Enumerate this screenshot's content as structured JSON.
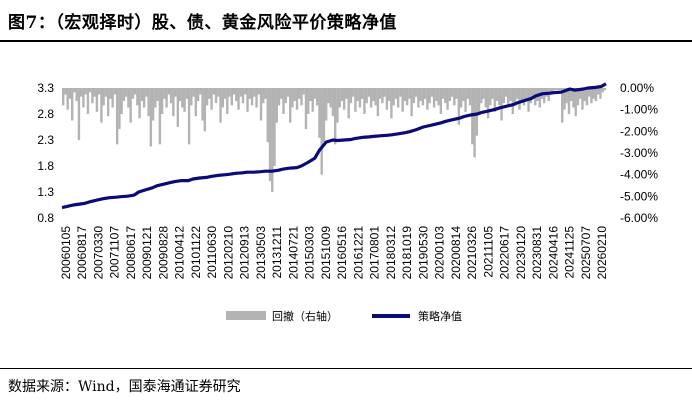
{
  "title": "图7：（宏观择时）股、债、黄金风险平价策略净值",
  "source": "数据来源：Wind，国泰海通证券研究",
  "colors": {
    "drawdown": "#b3b3b3",
    "nav": "#0a0a7a"
  },
  "chart_data": {
    "type": "bar+line",
    "left_axis": {
      "ticks": [
        "3.3",
        "2.8",
        "2.3",
        "1.8",
        "1.3",
        "0.8"
      ],
      "min": 0.8,
      "max": 3.3
    },
    "right_axis": {
      "ticks": [
        "0.00%",
        "-1.00%",
        "-2.00%",
        "-3.00%",
        "-4.00%",
        "-5.00%",
        "-6.00%"
      ],
      "min": -6.0,
      "max": 0.0
    },
    "x_ticks": [
      "20060105",
      "20060817",
      "20070330",
      "20071107",
      "20080617",
      "20090121",
      "20090828",
      "20100412",
      "20101122",
      "20110630",
      "20120210",
      "20120913",
      "20130503",
      "20131211",
      "20140721",
      "20150303",
      "20151009",
      "20160516",
      "20161221",
      "20170801",
      "20180312",
      "20181019",
      "20190530",
      "20200103",
      "20200814",
      "20210326",
      "20211105",
      "20220617",
      "20230120",
      "20230831",
      "20240416",
      "20241125",
      "20250707",
      "20260210"
    ],
    "series": [
      {
        "name": "回撤（右轴）",
        "type": "bar",
        "axis": "right",
        "y_percent": [
          -0.8,
          -0.3,
          -1.0,
          -0.5,
          -1.5,
          -0.2,
          -0.6,
          -2.4,
          -0.4,
          -0.9,
          -0.3,
          -1.2,
          -0.2,
          -0.7,
          -0.4,
          -1.1,
          -0.3,
          -1.6,
          -0.8,
          -0.4,
          -1.3,
          -0.5,
          -0.9,
          -0.3,
          -2.6,
          -1.9,
          -1.2,
          -0.6,
          -0.4,
          -0.9,
          -1.6,
          -0.5,
          -0.3,
          -0.8,
          -1.4,
          -0.6,
          -0.9,
          -0.4,
          -1.3,
          -2.7,
          -1.5,
          -0.9,
          -0.6,
          -2.6,
          -1.2,
          -0.5,
          -0.9,
          -0.3,
          -0.7,
          -1.3,
          -0.4,
          -1.8,
          -0.6,
          -0.9,
          -1.1,
          -0.5,
          -2.6,
          -0.8,
          -0.4,
          -1.3,
          -0.6,
          -0.3,
          -1.5,
          -2.0,
          -0.8,
          -0.5,
          -1.0,
          -0.3,
          -0.7,
          -0.4,
          -1.6,
          -0.9,
          -0.5,
          -1.2,
          -0.4,
          -0.8,
          -0.3,
          -0.6,
          -1.0,
          -0.4,
          -0.7,
          -0.3,
          -1.1,
          -0.5,
          -0.8,
          -0.4,
          -0.9,
          -0.3,
          -1.5,
          -0.7,
          -0.5,
          -2.5,
          -4.3,
          -4.8,
          -3.6,
          -1.6,
          -0.8,
          -0.5,
          -1.2,
          -0.7,
          -0.4,
          -1.6,
          -0.9,
          -0.6,
          -1.0,
          -0.5,
          -0.8,
          -0.3,
          -1.9,
          -1.2,
          -0.6,
          -1.1,
          -0.5,
          -0.8,
          -2.3,
          -4.0,
          -2.5,
          -1.5,
          -0.7,
          -0.9,
          -1.3,
          -2.6,
          -1.6,
          -0.9,
          -0.6,
          -1.0,
          -0.5,
          -1.4,
          -0.7,
          -0.4,
          -1.1,
          -0.6,
          -0.9,
          -0.5,
          -1.2,
          -0.7,
          -0.4,
          -0.9,
          -0.6,
          -0.8,
          -1.3,
          -0.5,
          -0.7,
          -0.4,
          -1.0,
          -0.6,
          -1.4,
          -0.8,
          -0.5,
          -0.9,
          -0.4,
          -1.1,
          -0.6,
          -0.8,
          -0.5,
          -1.3,
          -0.7,
          -0.4,
          -0.9,
          -0.6,
          -0.8,
          -0.5,
          -1.0,
          -0.7,
          -0.4,
          -0.9,
          -0.6,
          -0.8,
          -1.2,
          -0.5,
          -0.7,
          -1.0,
          -0.6,
          -0.4,
          -0.8,
          -0.5,
          -1.7,
          -0.9,
          -0.6,
          -1.1,
          -0.5,
          -0.8,
          -2.6,
          -3.2,
          -2.2,
          -1.2,
          -0.7,
          -0.5,
          -0.9,
          -1.4,
          -0.8,
          -0.5,
          -1.1,
          -0.6,
          -0.8,
          -1.5,
          -0.7,
          -0.4,
          -0.9,
          -0.6,
          -1.2,
          -0.7,
          -0.5,
          -1.0,
          -0.6,
          -0.8,
          -0.5,
          -1.1,
          -0.7,
          -0.4,
          -0.8,
          -0.6,
          -0.9,
          -0.5,
          -0.7,
          -0.4,
          -0.6,
          -0.3,
          -0.2,
          -0.1,
          -0.1,
          -0.1,
          -1.6,
          -1.0,
          -0.7,
          -1.2,
          -0.6,
          -0.9,
          -1.3,
          -0.8,
          -0.5,
          -1.0,
          -0.6,
          -0.8,
          -0.4,
          -0.7,
          -0.5,
          -0.6,
          -0.3,
          -0.5,
          -0.2,
          -0.1
        ]
      },
      {
        "name": "策略净值",
        "type": "line",
        "axis": "left",
        "x_index": [
          0,
          2,
          5,
          8,
          10,
          13,
          16,
          18,
          21,
          24,
          26,
          29,
          32,
          34,
          37,
          40,
          42,
          45,
          48,
          50,
          53,
          56,
          58,
          61,
          64,
          66,
          69,
          72,
          74,
          77,
          80,
          82,
          85,
          88,
          90,
          93,
          96,
          98,
          101,
          104,
          106,
          109,
          112,
          114,
          117,
          120,
          122,
          125,
          128,
          130,
          133,
          136,
          138,
          141,
          144,
          146,
          149,
          152,
          154,
          157,
          160,
          162,
          165,
          168,
          170,
          173,
          176,
          178,
          181,
          184,
          186,
          189,
          192,
          194,
          197,
          200,
          202,
          205,
          208,
          210,
          213,
          216,
          218,
          221,
          223,
          225,
          227,
          229,
          231,
          233,
          236,
          239,
          241
        ],
        "y": [
          1.0,
          1.02,
          1.05,
          1.07,
          1.08,
          1.12,
          1.15,
          1.17,
          1.19,
          1.2,
          1.21,
          1.22,
          1.24,
          1.3,
          1.34,
          1.38,
          1.42,
          1.45,
          1.48,
          1.5,
          1.52,
          1.52,
          1.55,
          1.57,
          1.58,
          1.6,
          1.62,
          1.63,
          1.64,
          1.66,
          1.67,
          1.68,
          1.68,
          1.69,
          1.7,
          1.7,
          1.72,
          1.74,
          1.76,
          1.77,
          1.8,
          1.87,
          1.95,
          2.1,
          2.26,
          2.3,
          2.29,
          2.3,
          2.31,
          2.33,
          2.35,
          2.36,
          2.37,
          2.38,
          2.39,
          2.4,
          2.42,
          2.44,
          2.46,
          2.5,
          2.55,
          2.57,
          2.6,
          2.63,
          2.66,
          2.69,
          2.72,
          2.75,
          2.78,
          2.8,
          2.83,
          2.86,
          2.89,
          2.92,
          2.95,
          2.98,
          3.02,
          3.06,
          3.1,
          3.15,
          3.19,
          3.2,
          3.21,
          3.22,
          3.25,
          3.28,
          3.26,
          3.27,
          3.28,
          3.3,
          3.31,
          3.33,
          3.38
        ]
      }
    ],
    "legend": {
      "position": "bottom-center"
    }
  }
}
